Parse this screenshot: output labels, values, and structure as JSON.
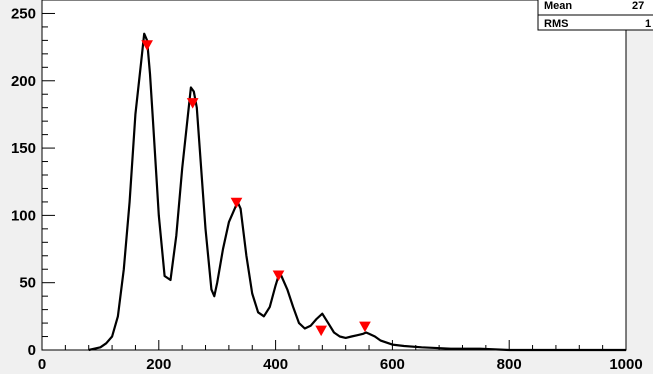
{
  "chart_data": {
    "type": "line",
    "xlim": [
      0,
      1000
    ],
    "ylim": [
      0,
      260
    ],
    "x_ticks": [
      "0",
      "200",
      "400",
      "600",
      "800",
      "1000"
    ],
    "y_ticks": [
      "0",
      "50",
      "100",
      "150",
      "200",
      "250"
    ],
    "x_tick_values": [
      0,
      200,
      400,
      600,
      800,
      1000
    ],
    "y_tick_values": [
      0,
      50,
      100,
      150,
      200,
      250
    ],
    "grid": false,
    "stats_box": [
      {
        "label": "Mean",
        "value": "27"
      },
      {
        "label": "RMS",
        "value": "1"
      }
    ],
    "series": [
      {
        "color": "#000000",
        "style": "histogram",
        "x": [
          80,
          100,
          110,
          120,
          130,
          140,
          150,
          160,
          170,
          175,
          180,
          185,
          190,
          200,
          210,
          220,
          230,
          240,
          250,
          255,
          260,
          265,
          270,
          280,
          290,
          295,
          300,
          310,
          320,
          330,
          335,
          340,
          350,
          360,
          370,
          380,
          390,
          400,
          405,
          410,
          420,
          430,
          440,
          450,
          460,
          470,
          480,
          490,
          500,
          510,
          520,
          530,
          540,
          550,
          555,
          560,
          570,
          580,
          600,
          620,
          650,
          700,
          750,
          800,
          850,
          900,
          950,
          1000
        ],
        "y": [
          0,
          2,
          5,
          10,
          25,
          60,
          110,
          175,
          215,
          235,
          230,
          205,
          170,
          100,
          55,
          52,
          85,
          135,
          175,
          195,
          192,
          180,
          150,
          90,
          45,
          40,
          50,
          75,
          95,
          105,
          110,
          105,
          70,
          42,
          28,
          25,
          32,
          48,
          55,
          55,
          45,
          32,
          20,
          16,
          18,
          23,
          27,
          20,
          13,
          10,
          9,
          10,
          11,
          12,
          13,
          12,
          10,
          7,
          4,
          3,
          2,
          1,
          1,
          0,
          0,
          0,
          0,
          0
        ]
      }
    ],
    "markers": [
      {
        "x": 180,
        "y": 226,
        "color": "#ff0000",
        "shape": "triangle-down"
      },
      {
        "x": 258,
        "y": 183,
        "color": "#ff0000",
        "shape": "triangle-down"
      },
      {
        "x": 333,
        "y": 109,
        "color": "#ff0000",
        "shape": "triangle-down"
      },
      {
        "x": 405,
        "y": 55,
        "color": "#ff0000",
        "shape": "triangle-down"
      },
      {
        "x": 478,
        "y": 14,
        "color": "#ff0000",
        "shape": "triangle-down"
      },
      {
        "x": 553,
        "y": 17,
        "color": "#ff0000",
        "shape": "triangle-down"
      }
    ]
  }
}
